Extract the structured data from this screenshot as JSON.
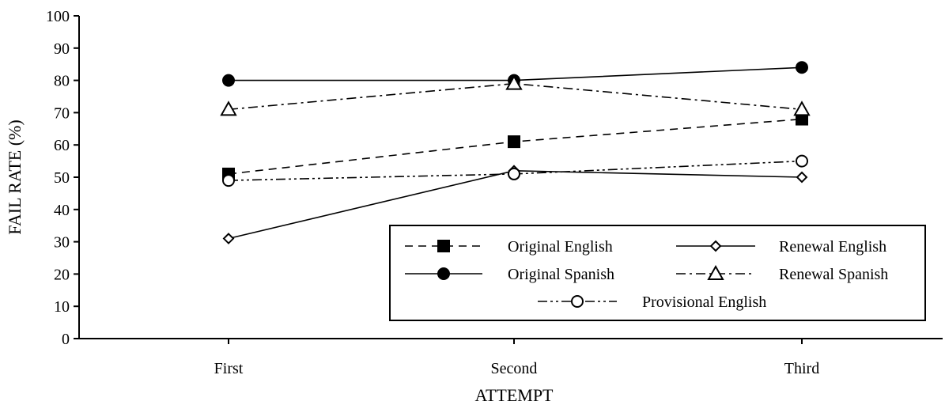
{
  "chart_data": {
    "type": "line",
    "title": "",
    "xlabel": "ATTEMPT",
    "ylabel": "FAIL RATE (%)",
    "categories": [
      "First",
      "Second",
      "Third"
    ],
    "ylim": [
      0,
      100
    ],
    "yticks": [
      0,
      10,
      20,
      30,
      40,
      50,
      60,
      70,
      80,
      90,
      100
    ],
    "grid": false,
    "legend_position": "bottom-right",
    "series": [
      {
        "name": "Original English",
        "values": [
          51,
          61,
          68
        ],
        "dash": "dashed",
        "marker": "square-filled"
      },
      {
        "name": "Renewal English",
        "values": [
          31,
          52,
          50
        ],
        "dash": "solid",
        "marker": "diamond-open"
      },
      {
        "name": "Original Spanish",
        "values": [
          80,
          80,
          84
        ],
        "dash": "solid",
        "marker": "circle-filled"
      },
      {
        "name": "Renewal Spanish",
        "values": [
          71,
          79,
          71
        ],
        "dash": "dashdot",
        "marker": "triangle-open"
      },
      {
        "name": "Provisional English",
        "values": [
          49,
          51,
          55
        ],
        "dash": "dashdotdot",
        "marker": "circle-open"
      }
    ]
  }
}
